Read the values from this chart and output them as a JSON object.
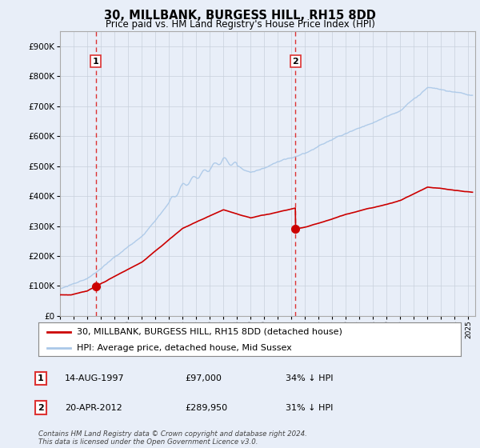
{
  "title": "30, MILLBANK, BURGESS HILL, RH15 8DD",
  "subtitle": "Price paid vs. HM Land Registry's House Price Index (HPI)",
  "ylim": [
    0,
    950000
  ],
  "yticks": [
    0,
    100000,
    200000,
    300000,
    400000,
    500000,
    600000,
    700000,
    800000,
    900000
  ],
  "xlim_start": 1995.0,
  "xlim_end": 2025.5,
  "sale1_date": 1997.617,
  "sale1_price": 97000,
  "sale1_label": "1",
  "sale2_date": 2012.305,
  "sale2_price": 289950,
  "sale2_label": "2",
  "hpi_color": "#aac8e8",
  "price_color": "#cc0000",
  "dashed_color": "#dd3333",
  "legend_label_price": "30, MILLBANK, BURGESS HILL, RH15 8DD (detached house)",
  "legend_label_hpi": "HPI: Average price, detached house, Mid Sussex",
  "table_rows": [
    {
      "num": "1",
      "date": "14-AUG-1997",
      "price": "£97,000",
      "info": "34% ↓ HPI"
    },
    {
      "num": "2",
      "date": "20-APR-2012",
      "price": "£289,950",
      "info": "31% ↓ HPI"
    }
  ],
  "footer": "Contains HM Land Registry data © Crown copyright and database right 2024.\nThis data is licensed under the Open Government Licence v3.0.",
  "background_color": "#e8eef8",
  "plot_bg_color": "#e8eef8"
}
